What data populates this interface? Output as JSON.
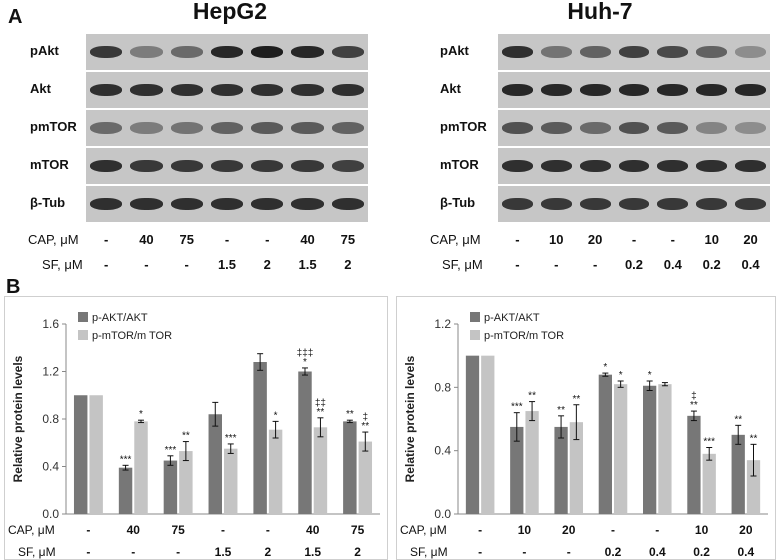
{
  "panels": {
    "a": "A",
    "b": "B"
  },
  "blots": [
    {
      "title": "HepG2",
      "rows": [
        "pAkt",
        "Akt",
        "pmTOR",
        "mTOR",
        "β-Tub"
      ],
      "cap_label": "CAP, μM",
      "sf_label": "SF, μM",
      "cap": [
        "-",
        "40",
        "75",
        "-",
        "-",
        "40",
        "75"
      ],
      "sf": [
        "-",
        "-",
        "-",
        "1.5",
        "2",
        "1.5",
        "2"
      ],
      "intensity": [
        [
          0.85,
          0.45,
          0.55,
          0.95,
          1.0,
          0.95,
          0.8
        ],
        [
          0.9,
          0.9,
          0.9,
          0.9,
          0.9,
          0.9,
          0.9
        ],
        [
          0.55,
          0.45,
          0.5,
          0.6,
          0.65,
          0.65,
          0.6
        ],
        [
          0.9,
          0.85,
          0.85,
          0.85,
          0.85,
          0.85,
          0.8
        ],
        [
          0.9,
          0.9,
          0.9,
          0.9,
          0.9,
          0.9,
          0.9
        ]
      ]
    },
    {
      "title": "Huh-7",
      "rows": [
        "pAkt",
        "Akt",
        "pmTOR",
        "mTOR",
        "β-Tub"
      ],
      "cap_label": "CAP, μM",
      "sf_label": "SF, μM",
      "cap": [
        "-",
        "10",
        "20",
        "-",
        "-",
        "10",
        "20"
      ],
      "sf": [
        "-",
        "-",
        "-",
        "0.2",
        "0.4",
        "0.2",
        "0.4"
      ],
      "intensity": [
        [
          0.9,
          0.5,
          0.6,
          0.8,
          0.75,
          0.6,
          0.35
        ],
        [
          0.95,
          0.95,
          0.95,
          0.95,
          0.95,
          0.95,
          0.95
        ],
        [
          0.7,
          0.65,
          0.55,
          0.7,
          0.65,
          0.4,
          0.35
        ],
        [
          0.9,
          0.9,
          0.9,
          0.9,
          0.9,
          0.9,
          0.9
        ],
        [
          0.85,
          0.85,
          0.85,
          0.85,
          0.85,
          0.85,
          0.85
        ]
      ]
    }
  ],
  "chart_data": [
    {
      "type": "bar",
      "ylabel": "Relative protein levels",
      "ylim": [
        0,
        1.6
      ],
      "yticks": [
        "0.0",
        "0.4",
        "0.8",
        "1.2",
        "1.6"
      ],
      "cap_label": "CAP, μM",
      "sf_label": "SF, μM",
      "cap": [
        "-",
        "40",
        "75",
        "-",
        "-",
        "40",
        "75"
      ],
      "sf": [
        "-",
        "-",
        "-",
        "1.5",
        "2",
        "1.5",
        "2"
      ],
      "series": [
        {
          "name": "p-AKT/AKT",
          "color": "#777777",
          "values": [
            1.0,
            0.39,
            0.45,
            0.84,
            1.28,
            1.2,
            0.78
          ],
          "errors": [
            0,
            0.02,
            0.04,
            0.1,
            0.07,
            0.03,
            0.01
          ],
          "sig": [
            "",
            "***",
            "***",
            "",
            "",
            "*",
            "**"
          ],
          "sig2": [
            "",
            "",
            "",
            "",
            "",
            "‡‡‡",
            ""
          ]
        },
        {
          "name": "p-mTOR/m TOR",
          "color": "#c4c4c4",
          "values": [
            1.0,
            0.78,
            0.53,
            0.55,
            0.71,
            0.73,
            0.61
          ],
          "errors": [
            0,
            0.01,
            0.08,
            0.04,
            0.07,
            0.08,
            0.08
          ],
          "sig": [
            "",
            "*",
            "**",
            "***",
            "*",
            "**",
            "**"
          ],
          "sig2": [
            "",
            "",
            "",
            "",
            "",
            "‡‡",
            "‡"
          ]
        }
      ],
      "legend": "top-left"
    },
    {
      "type": "bar",
      "ylabel": "Relative protein levels",
      "ylim": [
        0,
        1.2
      ],
      "yticks": [
        "0.0",
        "0.4",
        "0.8",
        "1.2"
      ],
      "cap_label": "CAP, μM",
      "sf_label": "SF, μM",
      "cap": [
        "-",
        "10",
        "20",
        "-",
        "-",
        "10",
        "20"
      ],
      "sf": [
        "-",
        "-",
        "-",
        "0.2",
        "0.4",
        "0.2",
        "0.4"
      ],
      "series": [
        {
          "name": "p-AKT/AKT",
          "color": "#777777",
          "values": [
            1.0,
            0.55,
            0.55,
            0.88,
            0.81,
            0.62,
            0.5
          ],
          "errors": [
            0,
            0.09,
            0.07,
            0.01,
            0.03,
            0.03,
            0.06
          ],
          "sig": [
            "",
            "***",
            "**",
            "*",
            "*",
            "**",
            "**"
          ],
          "sig2": [
            "",
            "",
            "",
            "",
            "",
            "‡",
            ""
          ]
        },
        {
          "name": "p-mTOR/m TOR",
          "color": "#c4c4c4",
          "values": [
            1.0,
            0.65,
            0.58,
            0.82,
            0.82,
            0.38,
            0.34
          ],
          "errors": [
            0,
            0.06,
            0.11,
            0.02,
            0.01,
            0.04,
            0.1
          ],
          "sig": [
            "",
            "**",
            "**",
            "*",
            "",
            "***",
            "**"
          ],
          "sig2": [
            "",
            "",
            "",
            "",
            "",
            "",
            ""
          ]
        }
      ],
      "legend": "top-left"
    }
  ]
}
